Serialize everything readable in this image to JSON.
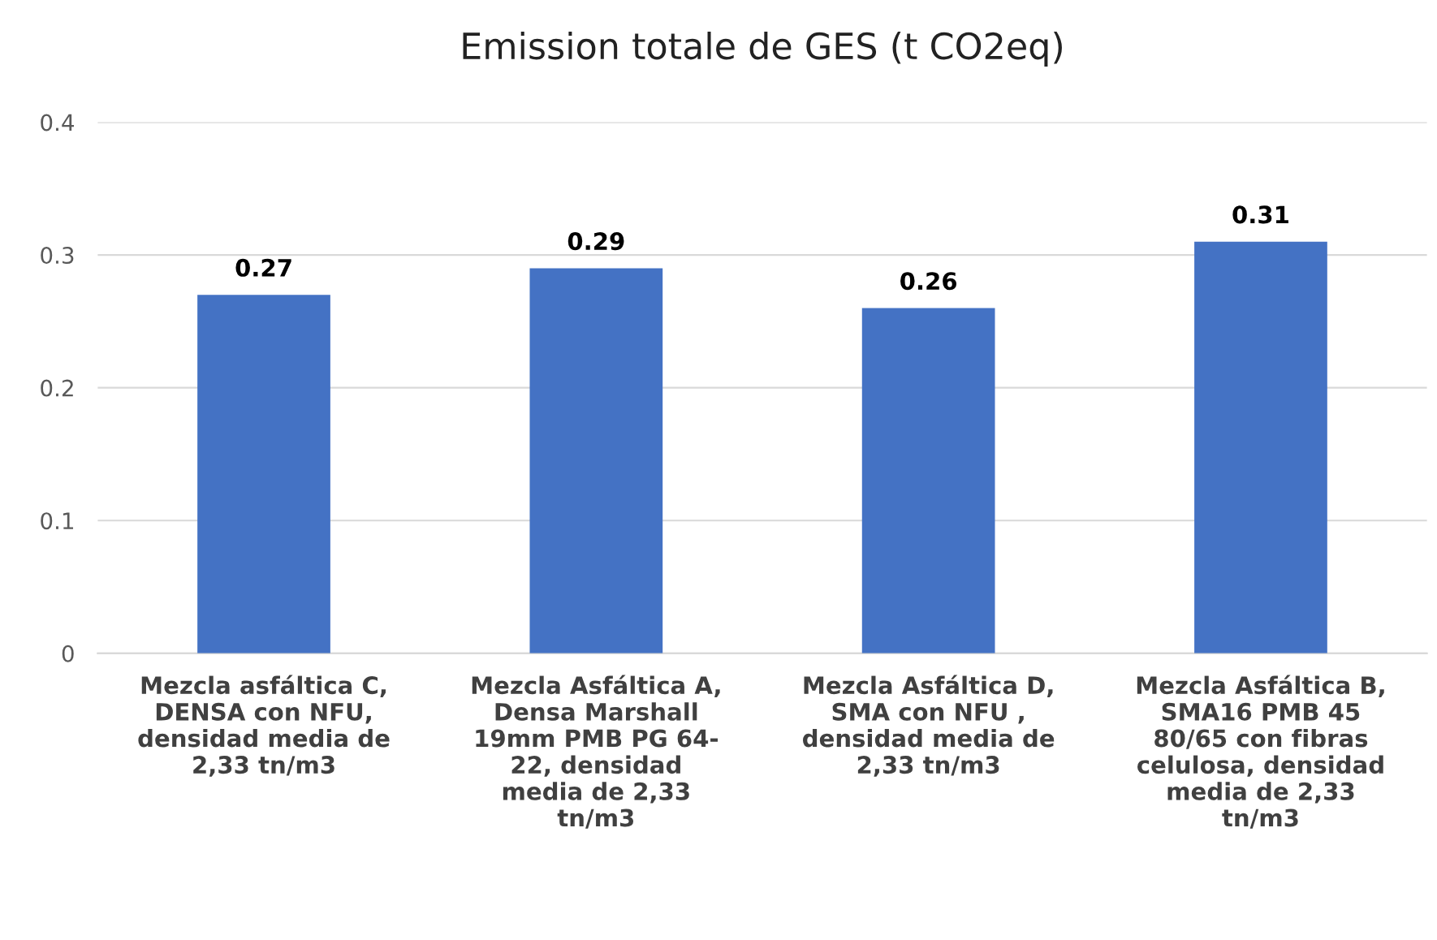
{
  "chart_data": {
    "type": "bar",
    "title": "Emission totale de GES (t CO2eq)",
    "categories": [
      "Mezcla asfáltica C,\nDENSA con NFU,\ndensidad media de\n2,33 tn/m3",
      "Mezcla Asfáltica A,\nDensa Marshall\n19mm PMB PG 64-\n22, densidad\nmedia de 2,33\ntn/m3",
      "Mezcla Asfáltica D,\nSMA con NFU ,\ndensidad media de\n2,33 tn/m3",
      "Mezcla Asfáltica B,\nSMA16 PMB 45\n80/65 con fibras\ncelulosa, densidad\nmedia de 2,33\ntn/m3"
    ],
    "values": [
      0.27,
      0.29,
      0.26,
      0.31
    ],
    "color": "#4472c4",
    "ylim": [
      0,
      0.4
    ],
    "yticks": [
      {
        "value": 0,
        "label": "0"
      },
      0.1,
      0.2,
      0.3,
      0.4
    ],
    "grid": "y",
    "data_labels": true
  }
}
